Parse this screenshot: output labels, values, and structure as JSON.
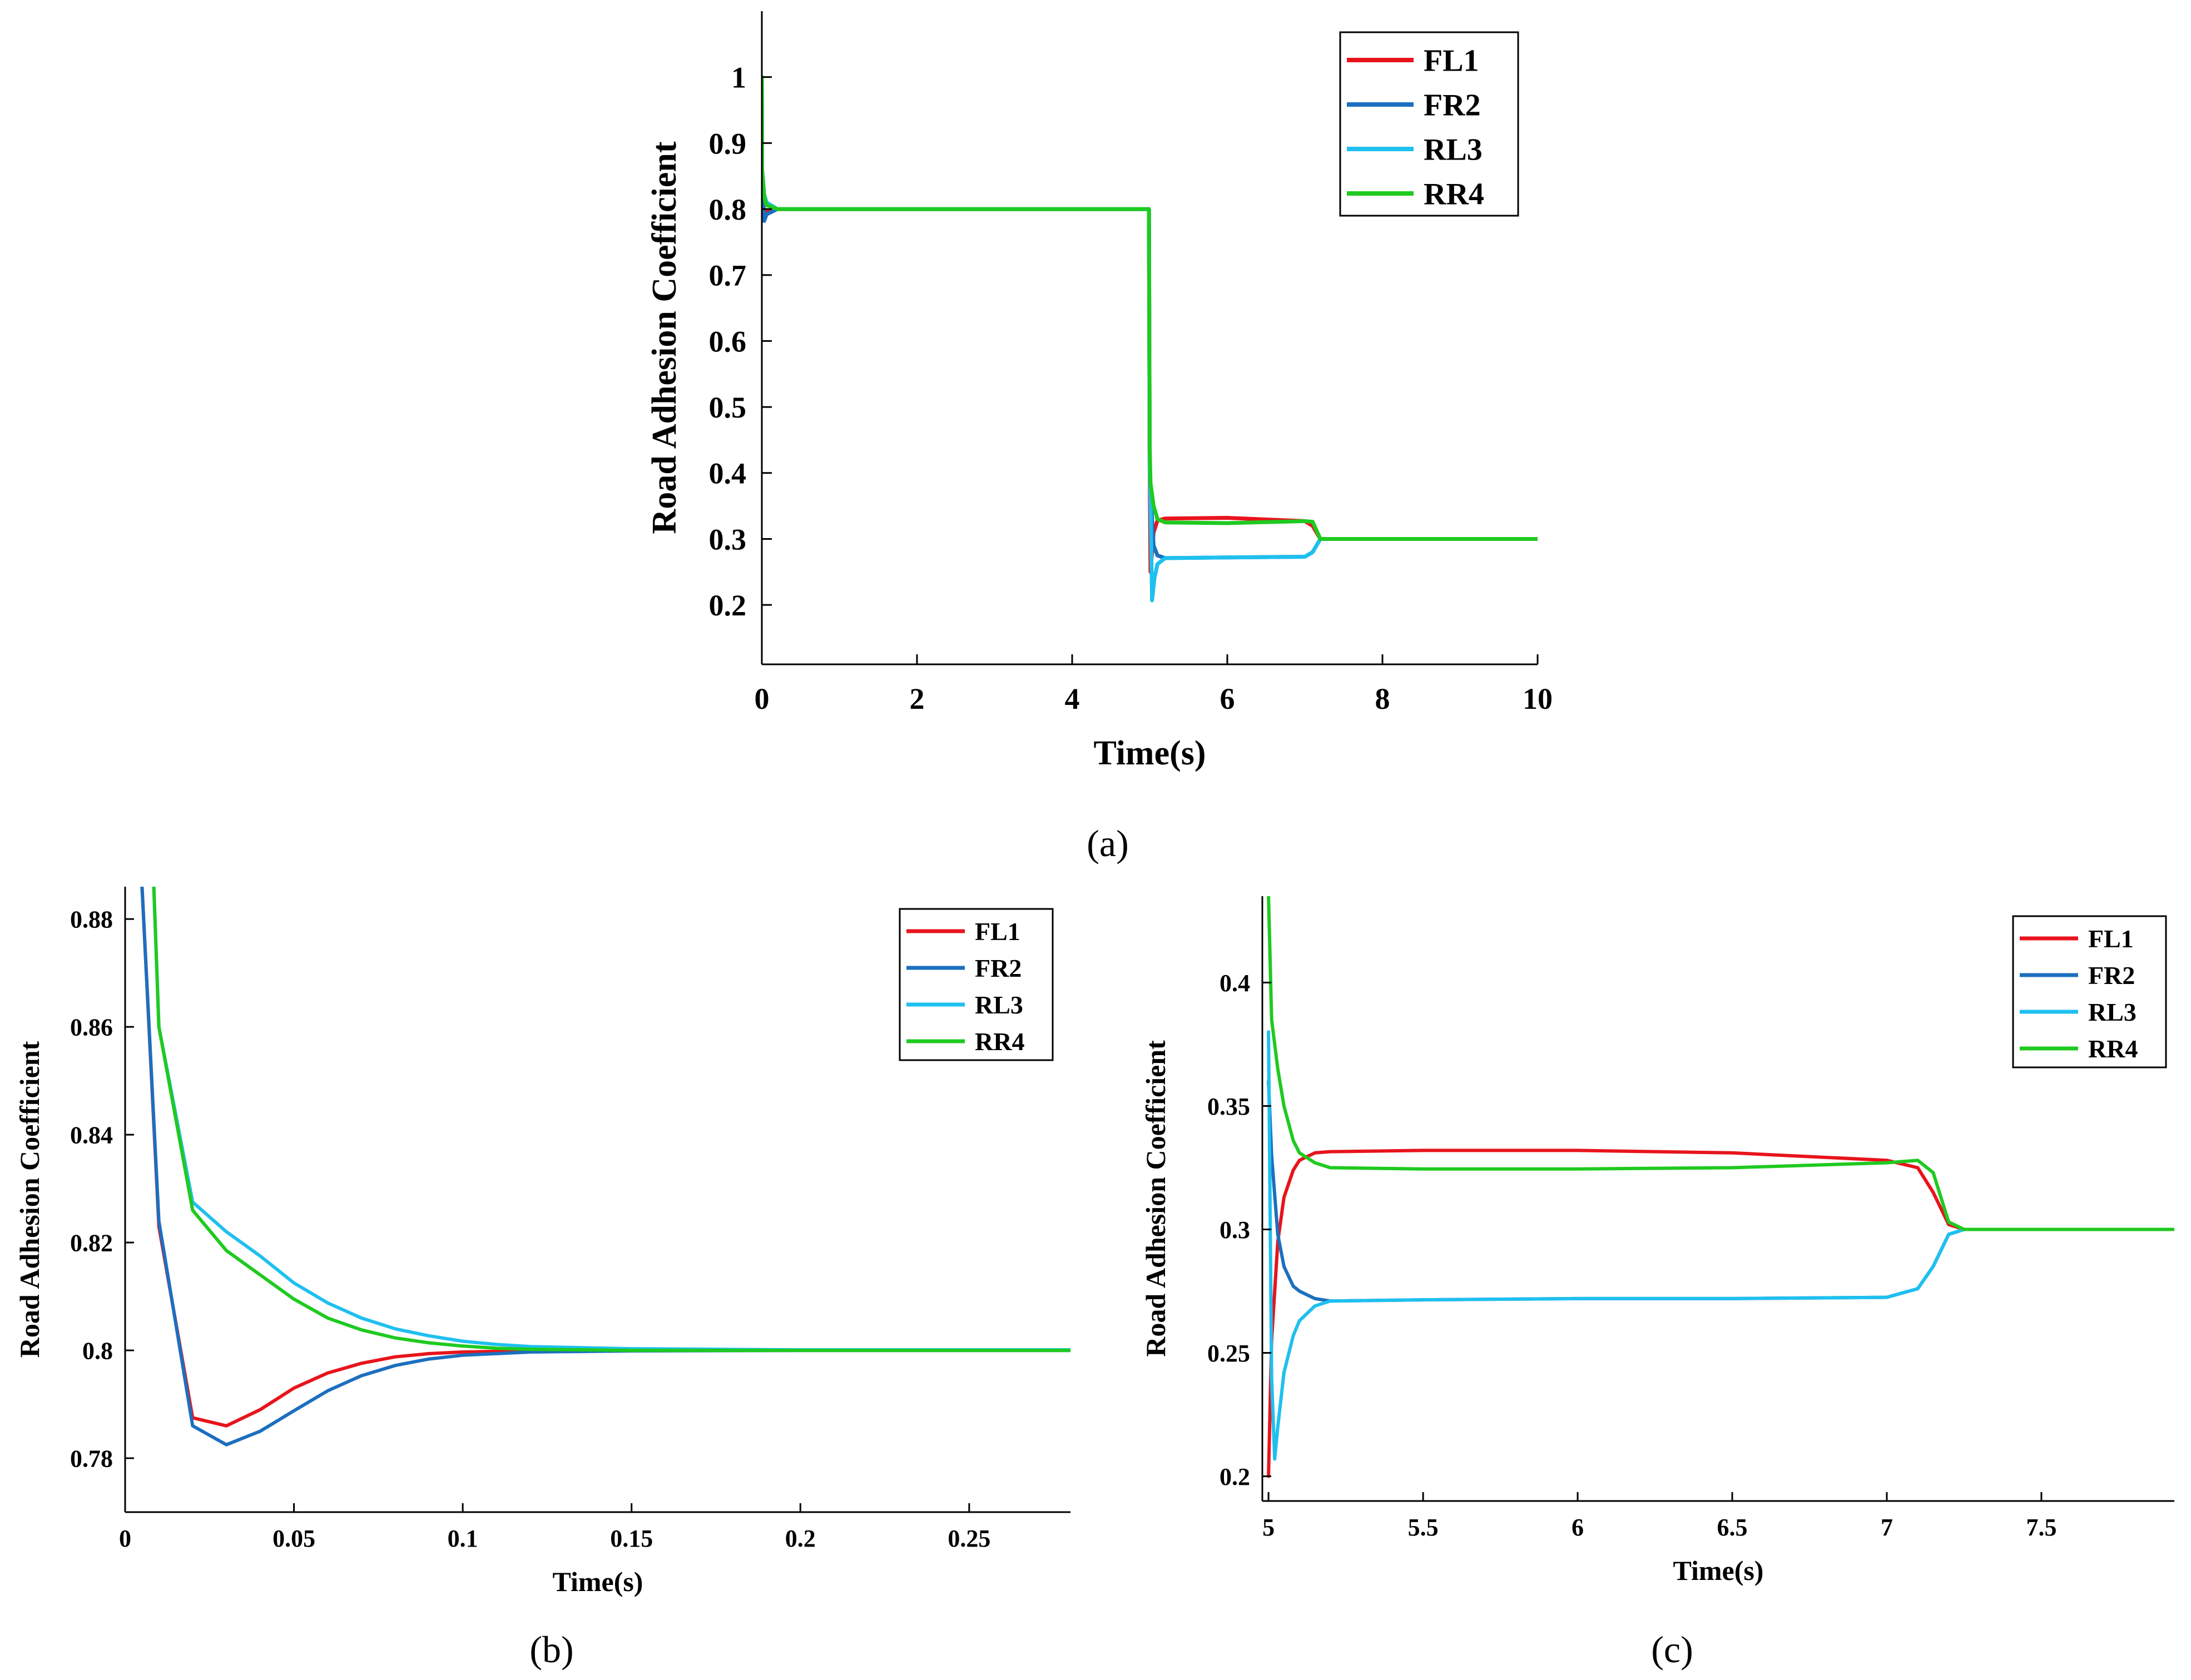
{
  "chart_data": [
    {
      "id": "a",
      "type": "line",
      "caption": "(a)",
      "xlabel": "Time(s)",
      "ylabel": "Road Adhesion Coefficient",
      "xlim": [
        0,
        10
      ],
      "ylim": [
        0.11,
        1.1
      ],
      "xticks": [
        0,
        2,
        4,
        6,
        8,
        10
      ],
      "xtick_labels": [
        "0",
        "2",
        "4",
        "6",
        "8",
        "10"
      ],
      "yticks": [
        0.2,
        0.3,
        0.4,
        0.5,
        0.6,
        0.7,
        0.8,
        0.9,
        1
      ],
      "ytick_labels": [
        "0.2",
        "0.3",
        "0.4",
        "0.5",
        "0.6",
        "0.7",
        "0.8",
        "0.9",
        "1"
      ],
      "legend": [
        "FL1",
        "FR2",
        "RL3",
        "RR4"
      ],
      "legend_position": "top-right",
      "series": [
        {
          "name": "FL1",
          "color": "#e8141c",
          "x": [
            0,
            0.003,
            0.03,
            0.06,
            0.2,
            4.99,
            5.0,
            5.01,
            5.05,
            5.1,
            5.2,
            6.0,
            7.0,
            7.1,
            7.2,
            10
          ],
          "y": [
            1.0,
            0.85,
            0.787,
            0.796,
            0.8,
            0.8,
            0.4,
            0.25,
            0.31,
            0.328,
            0.331,
            0.332,
            0.327,
            0.32,
            0.3,
            0.3
          ]
        },
        {
          "name": "FR2",
          "color": "#1c6fbf",
          "x": [
            0,
            0.003,
            0.03,
            0.06,
            0.2,
            4.99,
            5.0,
            5.01,
            5.05,
            5.1,
            5.2,
            6.0,
            7.0,
            7.1,
            7.2,
            10
          ],
          "y": [
            1.0,
            0.85,
            0.782,
            0.792,
            0.8,
            0.8,
            0.4,
            0.37,
            0.29,
            0.275,
            0.271,
            0.272,
            0.273,
            0.28,
            0.3,
            0.3
          ]
        },
        {
          "name": "RL3",
          "color": "#1ec0ef",
          "x": [
            0,
            0.003,
            0.03,
            0.06,
            0.2,
            4.99,
            5.0,
            5.01,
            5.03,
            5.06,
            5.1,
            5.2,
            6.0,
            7.0,
            7.1,
            7.2,
            10
          ],
          "y": [
            1.0,
            0.86,
            0.822,
            0.81,
            0.8,
            0.8,
            0.4,
            0.36,
            0.207,
            0.24,
            0.262,
            0.271,
            0.272,
            0.273,
            0.28,
            0.3,
            0.3
          ]
        },
        {
          "name": "RR4",
          "color": "#1fca20",
          "x": [
            0,
            0.003,
            0.03,
            0.06,
            0.2,
            4.99,
            5.0,
            5.01,
            5.05,
            5.1,
            5.2,
            6.0,
            7.0,
            7.1,
            7.2,
            10
          ],
          "y": [
            1.0,
            0.86,
            0.819,
            0.806,
            0.8,
            0.8,
            0.44,
            0.385,
            0.35,
            0.33,
            0.325,
            0.324,
            0.327,
            0.326,
            0.3,
            0.3
          ]
        }
      ]
    },
    {
      "id": "b",
      "type": "line",
      "caption": "(b)",
      "xlabel": "Time(s)",
      "ylabel": "Road Adhesion Coefficient",
      "xlim": [
        0,
        0.28
      ],
      "ylim": [
        0.77,
        0.886
      ],
      "xticks": [
        0,
        0.05,
        0.1,
        0.15,
        0.2,
        0.25
      ],
      "xtick_labels": [
        "0",
        "0.05",
        "0.1",
        "0.15",
        "0.2",
        "0.25"
      ],
      "yticks": [
        0.78,
        0.8,
        0.82,
        0.84,
        0.86,
        0.88
      ],
      "ytick_labels": [
        "0.78",
        "0.8",
        "0.82",
        "0.84",
        "0.86",
        "0.88"
      ],
      "legend": [
        "FL1",
        "FR2",
        "RL3",
        "RR4"
      ],
      "legend_position": "top-right",
      "series": [
        {
          "name": "FL1",
          "color": "#e8141c",
          "x": [
            0.005,
            0.01,
            0.02,
            0.03,
            0.04,
            0.05,
            0.06,
            0.07,
            0.08,
            0.09,
            0.1,
            0.12,
            0.15,
            0.2,
            0.28
          ],
          "y": [
            0.886,
            0.823,
            0.7875,
            0.786,
            0.789,
            0.793,
            0.7958,
            0.7976,
            0.7988,
            0.7994,
            0.7997,
            0.7999,
            0.8,
            0.8,
            0.8
          ]
        },
        {
          "name": "FR2",
          "color": "#1c6fbf",
          "x": [
            0.005,
            0.01,
            0.02,
            0.03,
            0.04,
            0.05,
            0.06,
            0.07,
            0.08,
            0.09,
            0.1,
            0.12,
            0.15,
            0.2,
            0.28
          ],
          "y": [
            0.886,
            0.824,
            0.786,
            0.7825,
            0.785,
            0.7888,
            0.7925,
            0.7953,
            0.7972,
            0.7984,
            0.7991,
            0.7997,
            0.7999,
            0.8,
            0.8
          ]
        },
        {
          "name": "RL3",
          "color": "#1ec0ef",
          "x": [
            0.0085,
            0.01,
            0.02,
            0.03,
            0.04,
            0.05,
            0.06,
            0.07,
            0.08,
            0.09,
            0.1,
            0.11,
            0.12,
            0.15,
            0.2,
            0.28
          ],
          "y": [
            0.886,
            0.86,
            0.8275,
            0.822,
            0.8175,
            0.8125,
            0.8088,
            0.806,
            0.804,
            0.8027,
            0.8017,
            0.8011,
            0.8007,
            0.8003,
            0.8001,
            0.8001
          ]
        },
        {
          "name": "RR4",
          "color": "#1fca20",
          "x": [
            0.0085,
            0.01,
            0.02,
            0.03,
            0.04,
            0.05,
            0.06,
            0.07,
            0.08,
            0.09,
            0.1,
            0.11,
            0.12,
            0.15,
            0.2,
            0.28
          ],
          "y": [
            0.886,
            0.86,
            0.826,
            0.8185,
            0.814,
            0.8095,
            0.806,
            0.8038,
            0.8023,
            0.8014,
            0.8008,
            0.8004,
            0.8002,
            0.8,
            0.8,
            0.8
          ]
        }
      ]
    },
    {
      "id": "c",
      "type": "line",
      "caption": "(c)",
      "xlabel": "Time(s)",
      "ylabel": "Road Adhesion Coefficient",
      "xlim": [
        4.98,
        7.93
      ],
      "ylim": [
        0.19,
        0.435
      ],
      "xticks": [
        5,
        5.5,
        6,
        6.5,
        7,
        7.5
      ],
      "xtick_labels": [
        "5",
        "5.5",
        "6",
        "6.5",
        "7",
        "7.5"
      ],
      "yticks": [
        0.2,
        0.25,
        0.3,
        0.35,
        0.4
      ],
      "ytick_labels": [
        "0.2",
        "0.25",
        "0.3",
        "0.35",
        "0.4"
      ],
      "legend": [
        "FL1",
        "FR2",
        "RL3",
        "RR4"
      ],
      "legend_position": "top-right",
      "series": [
        {
          "name": "FL1",
          "color": "#e8141c",
          "x": [
            5.0,
            5.01,
            5.03,
            5.05,
            5.08,
            5.1,
            5.15,
            5.2,
            5.5,
            6.0,
            6.5,
            7.0,
            7.1,
            7.15,
            7.2,
            7.25,
            7.5,
            7.93
          ],
          "y": [
            0.2,
            0.255,
            0.295,
            0.313,
            0.324,
            0.328,
            0.331,
            0.3315,
            0.332,
            0.332,
            0.331,
            0.328,
            0.325,
            0.315,
            0.302,
            0.3,
            0.3,
            0.3
          ]
        },
        {
          "name": "FR2",
          "color": "#1c6fbf",
          "x": [
            5.0,
            5.01,
            5.03,
            5.05,
            5.08,
            5.1,
            5.15,
            5.2,
            5.5,
            6.0,
            6.5,
            7.0,
            7.1,
            7.15,
            7.2,
            7.25,
            7.5,
            7.93
          ],
          "y": [
            0.36,
            0.33,
            0.298,
            0.285,
            0.277,
            0.275,
            0.272,
            0.271,
            0.2715,
            0.272,
            0.272,
            0.2725,
            0.276,
            0.285,
            0.298,
            0.3,
            0.3,
            0.3
          ]
        },
        {
          "name": "RL3",
          "color": "#1ec0ef",
          "x": [
            5.0,
            5.01,
            5.02,
            5.03,
            5.05,
            5.08,
            5.1,
            5.15,
            5.2,
            5.5,
            6.0,
            6.5,
            7.0,
            7.1,
            7.15,
            7.2,
            7.25,
            7.5,
            7.93
          ],
          "y": [
            0.38,
            0.24,
            0.207,
            0.22,
            0.242,
            0.257,
            0.263,
            0.269,
            0.271,
            0.2715,
            0.272,
            0.272,
            0.2725,
            0.276,
            0.285,
            0.298,
            0.3,
            0.3,
            0.3
          ]
        },
        {
          "name": "RR4",
          "color": "#1fca20",
          "x": [
            5.0,
            5.005,
            5.01,
            5.03,
            5.05,
            5.08,
            5.1,
            5.15,
            5.2,
            5.5,
            6.0,
            6.5,
            7.0,
            7.1,
            7.15,
            7.2,
            7.25,
            7.5,
            7.93
          ],
          "y": [
            0.435,
            0.41,
            0.385,
            0.365,
            0.35,
            0.336,
            0.331,
            0.327,
            0.325,
            0.3245,
            0.3245,
            0.325,
            0.327,
            0.328,
            0.323,
            0.303,
            0.3,
            0.3,
            0.3
          ]
        }
      ]
    }
  ]
}
